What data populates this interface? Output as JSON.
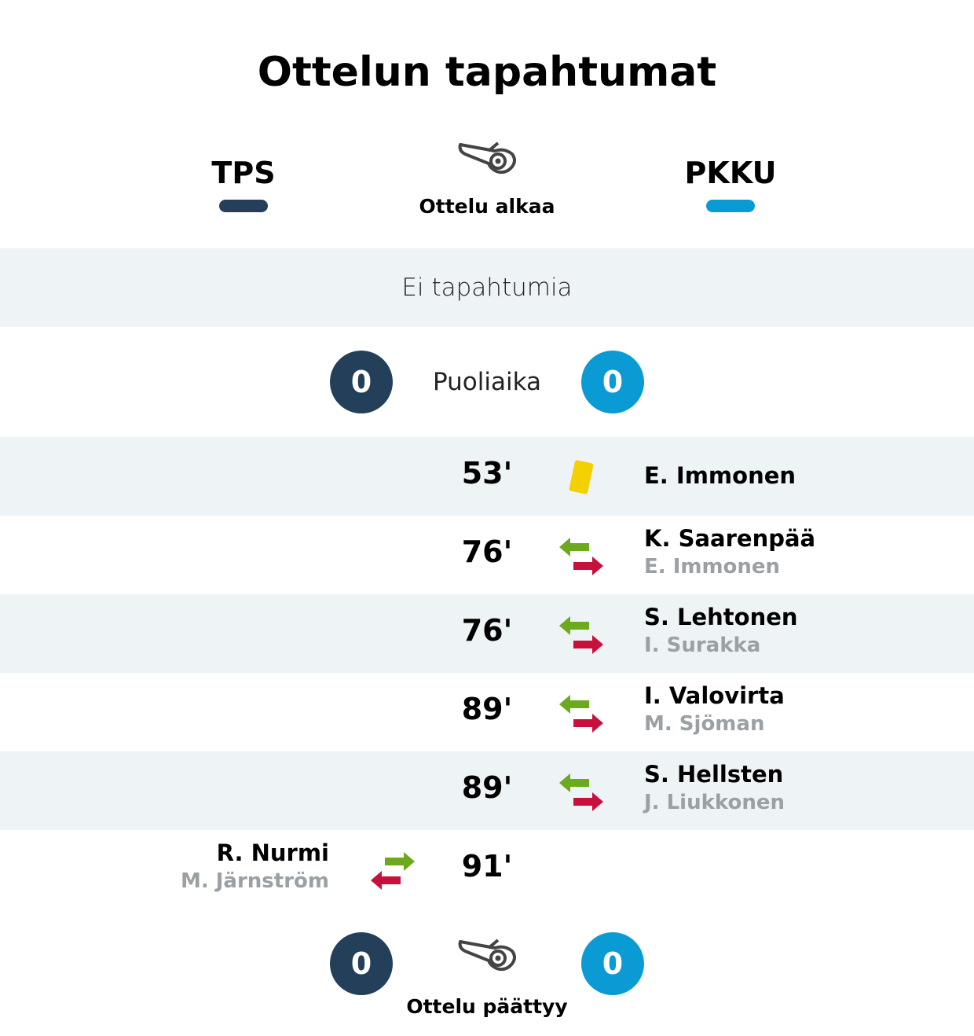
{
  "title": "Ottelun tapahtumat",
  "colors": {
    "home": "#243f5a",
    "away": "#0a9bd5",
    "yellow_card": "#f5d000",
    "sub_in": "#6aaa1c",
    "sub_out": "#c8103d",
    "band": "#eef3f6"
  },
  "home_team": "TPS",
  "away_team": "PKKU",
  "kickoff_label": "Ottelu alkaa",
  "first_half_text": "Ei tapahtumia",
  "halftime": {
    "label": "Puoliaika",
    "home_score": "0",
    "away_score": "0"
  },
  "events": [
    {
      "minute": "53'",
      "type": "yellow-card",
      "side": "away",
      "player": "E. Immonen"
    },
    {
      "minute": "76'",
      "type": "substitution",
      "side": "away",
      "player_in": "K. Saarenpää",
      "player_out": "E. Immonen"
    },
    {
      "minute": "76'",
      "type": "substitution",
      "side": "away",
      "player_in": "S. Lehtonen",
      "player_out": "I. Surakka"
    },
    {
      "minute": "89'",
      "type": "substitution",
      "side": "away",
      "player_in": "I. Valovirta",
      "player_out": "M. Sjöman"
    },
    {
      "minute": "89'",
      "type": "substitution",
      "side": "away",
      "player_in": "S. Hellsten",
      "player_out": "J. Liukkonen"
    },
    {
      "minute": "91'",
      "type": "substitution",
      "side": "home",
      "player_in": "R. Nurmi",
      "player_out": "M. Järnström"
    }
  ],
  "fulltime": {
    "label": "Ottelu päättyy",
    "home_score": "0",
    "away_score": "0"
  }
}
